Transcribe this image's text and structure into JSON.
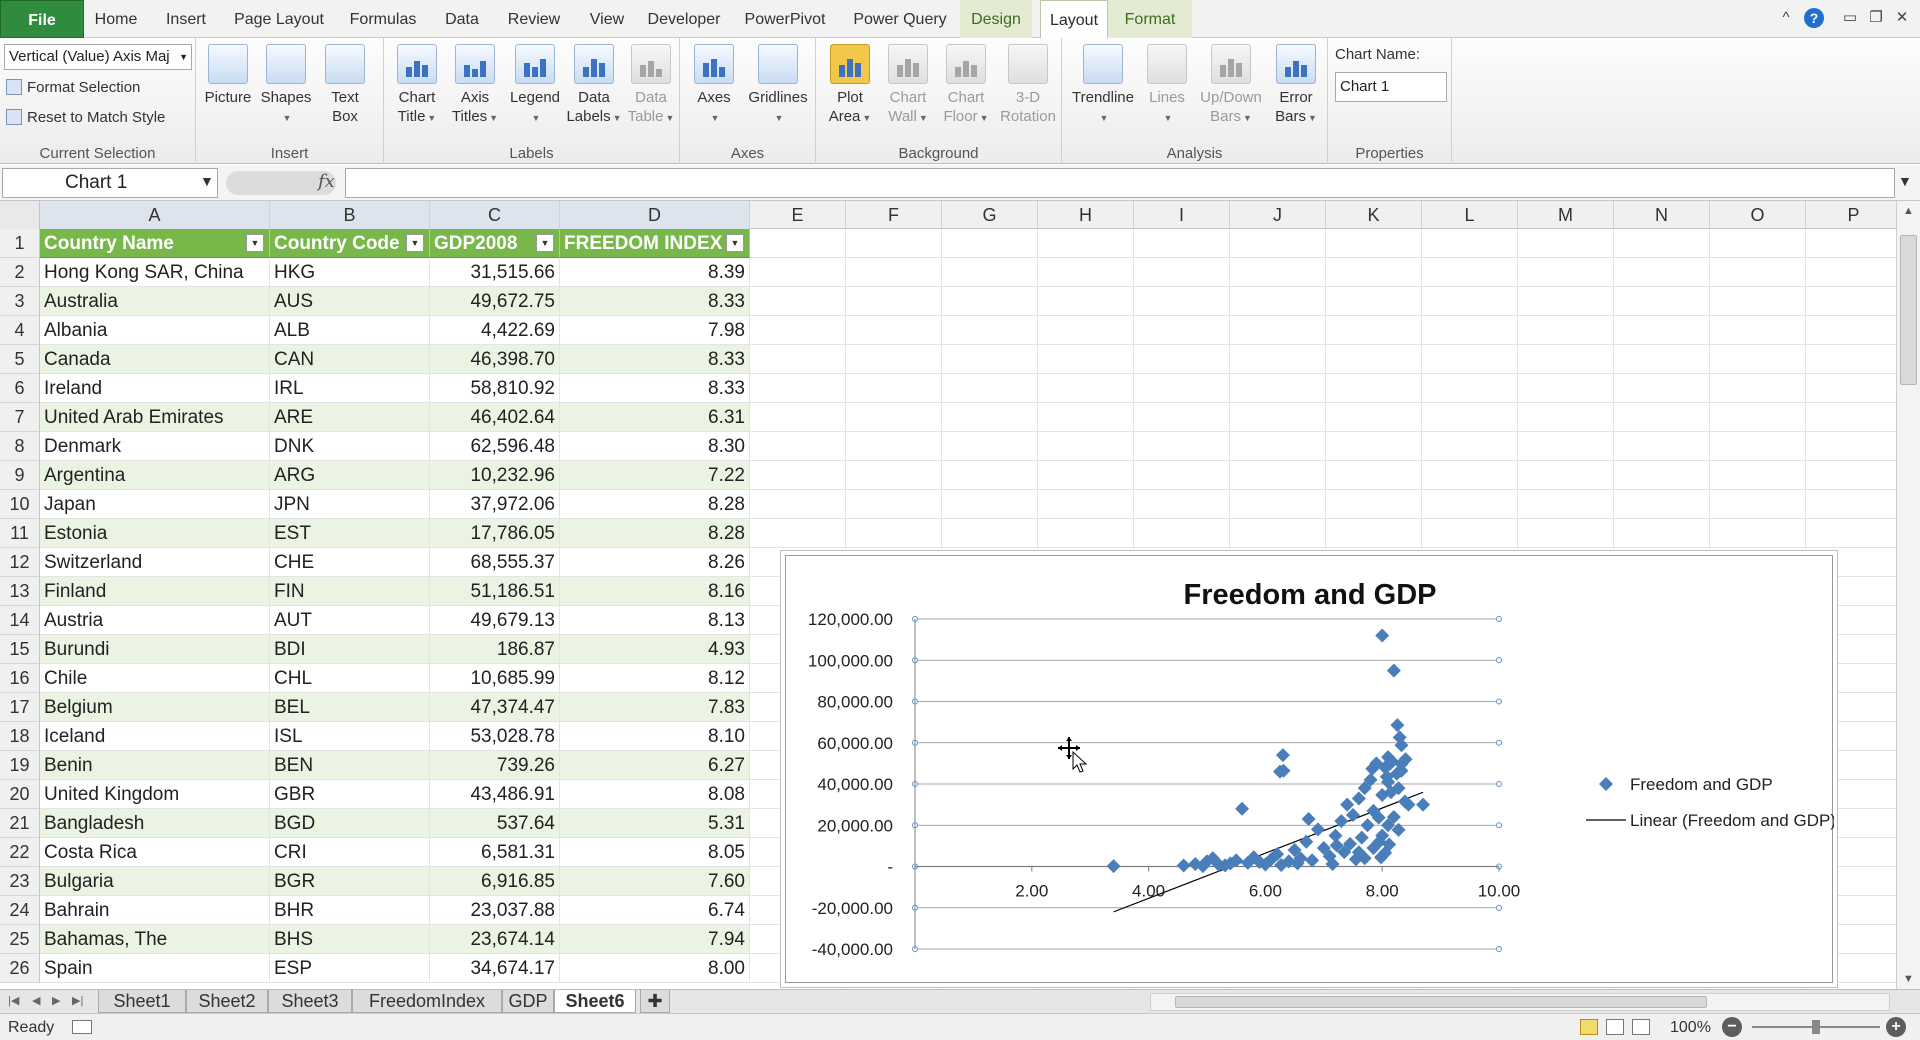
{
  "menubar": {
    "tabs": [
      {
        "label": "File",
        "kind": "file"
      },
      {
        "label": "Home"
      },
      {
        "label": "Insert"
      },
      {
        "label": "Page Layout"
      },
      {
        "label": "Formulas"
      },
      {
        "label": "Data"
      },
      {
        "label": "Review"
      },
      {
        "label": "View"
      },
      {
        "label": "Developer"
      },
      {
        "label": "PowerPivot"
      },
      {
        "label": "Power Query"
      },
      {
        "label": "Design",
        "kind": "ctx"
      },
      {
        "label": "Layout",
        "kind": "ctx-active"
      },
      {
        "label": "Format",
        "kind": "ctx"
      }
    ],
    "window": {
      "minimize_ribbon": "^",
      "help": "?",
      "minimize": "▭",
      "restore": "❐",
      "close": "✕"
    }
  },
  "ribbon": {
    "current_selection": {
      "dropdown_value": "Vertical (Value) Axis Maj",
      "format_selection": "Format Selection",
      "reset_style": "Reset to Match Style",
      "label": "Current Selection"
    },
    "insert": {
      "label": "Insert",
      "picture": "Picture",
      "shapes": "Shapes",
      "text_box_1": "Text",
      "text_box_2": "Box"
    },
    "labels": {
      "label": "Labels",
      "chart_title_1": "Chart",
      "chart_title_2": "Title",
      "axis_titles_1": "Axis",
      "axis_titles_2": "Titles",
      "legend": "Legend",
      "data_labels_1": "Data",
      "data_labels_2": "Labels",
      "data_table_1": "Data",
      "data_table_2": "Table"
    },
    "axes": {
      "label": "Axes",
      "axes": "Axes",
      "gridlines": "Gridlines"
    },
    "background": {
      "label": "Background",
      "plot_area_1": "Plot",
      "plot_area_2": "Area",
      "chart_wall_1": "Chart",
      "chart_wall_2": "Wall",
      "chart_floor_1": "Chart",
      "chart_floor_2": "Floor",
      "rotation_1": "3-D",
      "rotation_2": "Rotation"
    },
    "analysis": {
      "label": "Analysis",
      "trendline": "Trendline",
      "lines": "Lines",
      "updown_1": "Up/Down",
      "updown_2": "Bars",
      "error_1": "Error",
      "error_2": "Bars"
    },
    "properties": {
      "label": "Properties",
      "chart_name_label": "Chart Name:",
      "chart_name_value": "Chart 1"
    }
  },
  "formulabar": {
    "namebox": "Chart 1",
    "fx": "fx",
    "formula": ""
  },
  "sheet": {
    "columns": [
      "A",
      "B",
      "C",
      "D",
      "E",
      "F",
      "G",
      "H",
      "I",
      "J",
      "K",
      "L",
      "M",
      "N",
      "O",
      "P"
    ],
    "headers": [
      "Country Name",
      "Country Code",
      "GDP2008",
      "FREEDOM INDEX"
    ],
    "rows": [
      [
        "Hong Kong SAR, China",
        "HKG",
        "31,515.66",
        "8.39"
      ],
      [
        "Australia",
        "AUS",
        "49,672.75",
        "8.33"
      ],
      [
        "Albania",
        "ALB",
        "4,422.69",
        "7.98"
      ],
      [
        "Canada",
        "CAN",
        "46,398.70",
        "8.33"
      ],
      [
        "Ireland",
        "IRL",
        "58,810.92",
        "8.33"
      ],
      [
        "United Arab Emirates",
        "ARE",
        "46,402.64",
        "6.31"
      ],
      [
        "Denmark",
        "DNK",
        "62,596.48",
        "8.30"
      ],
      [
        "Argentina",
        "ARG",
        "10,232.96",
        "7.22"
      ],
      [
        "Japan",
        "JPN",
        "37,972.06",
        "8.28"
      ],
      [
        "Estonia",
        "EST",
        "17,786.05",
        "8.28"
      ],
      [
        "Switzerland",
        "CHE",
        "68,555.37",
        "8.26"
      ],
      [
        "Finland",
        "FIN",
        "51,186.51",
        "8.16"
      ],
      [
        "Austria",
        "AUT",
        "49,679.13",
        "8.13"
      ],
      [
        "Burundi",
        "BDI",
        "186.87",
        "4.93"
      ],
      [
        "Chile",
        "CHL",
        "10,685.99",
        "8.12"
      ],
      [
        "Belgium",
        "BEL",
        "47,374.47",
        "7.83"
      ],
      [
        "Iceland",
        "ISL",
        "53,028.78",
        "8.10"
      ],
      [
        "Benin",
        "BEN",
        "739.26",
        "6.27"
      ],
      [
        "United Kingdom",
        "GBR",
        "43,486.91",
        "8.08"
      ],
      [
        "Bangladesh",
        "BGD",
        "537.64",
        "5.31"
      ],
      [
        "Costa Rica",
        "CRI",
        "6,581.31",
        "8.05"
      ],
      [
        "Bulgaria",
        "BGR",
        "6,916.85",
        "7.60"
      ],
      [
        "Bahrain",
        "BHR",
        "23,037.88",
        "6.74"
      ],
      [
        "Bahamas, The",
        "BHS",
        "23,674.14",
        "7.94"
      ],
      [
        "Spain",
        "ESP",
        "34,674.17",
        "8.00"
      ]
    ],
    "row_numbers": [
      "1",
      "2",
      "3",
      "4",
      "5",
      "6",
      "7",
      "8",
      "9",
      "10",
      "11",
      "12",
      "13",
      "14",
      "15",
      "16",
      "17",
      "18",
      "19",
      "20",
      "21",
      "22",
      "23",
      "24",
      "25",
      "26"
    ]
  },
  "chart_data": {
    "type": "scatter",
    "title": "Freedom and GDP",
    "xlim": [
      0,
      10
    ],
    "ylim": [
      -40000,
      120000
    ],
    "x_ticks": [
      2,
      4,
      6,
      8,
      10
    ],
    "x_tick_labels": [
      "2.00",
      "4.00",
      "6.00",
      "8.00",
      "10.00"
    ],
    "y_ticks": [
      120000,
      100000,
      80000,
      60000,
      40000,
      20000,
      0,
      -20000,
      -40000
    ],
    "y_tick_labels": [
      "120,000.00",
      "100,000.00",
      "80,000.00",
      "60,000.00",
      "40,000.00",
      "20,000.00",
      "-",
      "-20,000.00",
      "-40,000.00"
    ],
    "grid": true,
    "legend_position": "right",
    "series": [
      {
        "name": "Freedom and GDP",
        "marker": "diamond",
        "color": "#4a7ebb",
        "points": [
          [
            8.39,
            31515
          ],
          [
            8.33,
            49672
          ],
          [
            7.98,
            4422
          ],
          [
            8.33,
            46398
          ],
          [
            8.33,
            58810
          ],
          [
            6.31,
            46402
          ],
          [
            8.3,
            62596
          ],
          [
            7.22,
            10232
          ],
          [
            8.28,
            37972
          ],
          [
            8.28,
            17786
          ],
          [
            8.26,
            68555
          ],
          [
            8.16,
            51186
          ],
          [
            8.13,
            49679
          ],
          [
            4.93,
            186
          ],
          [
            8.12,
            10685
          ],
          [
            7.83,
            47374
          ],
          [
            8.1,
            53028
          ],
          [
            6.27,
            739
          ],
          [
            8.08,
            43486
          ],
          [
            5.31,
            537
          ],
          [
            8.05,
            6581
          ],
          [
            7.6,
            6916
          ],
          [
            6.74,
            23037
          ],
          [
            7.94,
            23674
          ],
          [
            8.0,
            34674
          ],
          [
            8.0,
            112000
          ],
          [
            8.2,
            95000
          ],
          [
            6.3,
            54000
          ],
          [
            6.25,
            46000
          ],
          [
            5.6,
            28000
          ],
          [
            3.4,
            200
          ],
          [
            4.6,
            500
          ],
          [
            4.8,
            1200
          ],
          [
            5.0,
            2500
          ],
          [
            5.1,
            4000
          ],
          [
            5.2,
            900
          ],
          [
            5.4,
            1500
          ],
          [
            5.5,
            3000
          ],
          [
            5.7,
            1800
          ],
          [
            5.8,
            4500
          ],
          [
            5.9,
            2200
          ],
          [
            6.0,
            1000
          ],
          [
            6.1,
            3500
          ],
          [
            6.2,
            6000
          ],
          [
            6.4,
            2500
          ],
          [
            6.5,
            8000
          ],
          [
            6.6,
            4000
          ],
          [
            6.7,
            12000
          ],
          [
            6.8,
            3000
          ],
          [
            6.9,
            18000
          ],
          [
            7.0,
            9000
          ],
          [
            7.1,
            5000
          ],
          [
            7.2,
            15000
          ],
          [
            7.3,
            22000
          ],
          [
            7.35,
            7000
          ],
          [
            7.4,
            30000
          ],
          [
            7.45,
            11000
          ],
          [
            7.5,
            25000
          ],
          [
            7.55,
            3500
          ],
          [
            7.6,
            33000
          ],
          [
            7.65,
            14000
          ],
          [
            7.7,
            38000
          ],
          [
            7.75,
            20000
          ],
          [
            7.8,
            42000
          ],
          [
            7.85,
            27000
          ],
          [
            7.9,
            50000
          ],
          [
            7.95,
            12000
          ],
          [
            8.05,
            48000
          ],
          [
            8.1,
            41000
          ],
          [
            8.15,
            36000
          ],
          [
            8.2,
            24000
          ],
          [
            8.25,
            45000
          ],
          [
            8.4,
            52000
          ],
          [
            8.45,
            30000
          ],
          [
            8.7,
            30000
          ],
          [
            7.85,
            9000
          ],
          [
            7.7,
            4000
          ],
          [
            8.0,
            15000
          ],
          [
            8.1,
            20000
          ],
          [
            6.55,
            1500
          ],
          [
            7.15,
            1200
          ]
        ]
      },
      {
        "name": "Linear (Freedom and GDP)",
        "kind": "trendline",
        "color": "#000000",
        "points": [
          [
            3.4,
            -22000
          ],
          [
            8.7,
            36000
          ]
        ]
      }
    ]
  },
  "sheet_tabs": [
    "Sheet1",
    "Sheet2",
    "Sheet3",
    "FreedomIndex",
    "GDP",
    "Sheet6"
  ],
  "active_sheet": "Sheet6",
  "status": {
    "ready": "Ready",
    "zoom": "100%",
    "minus": "−",
    "plus": "+"
  }
}
